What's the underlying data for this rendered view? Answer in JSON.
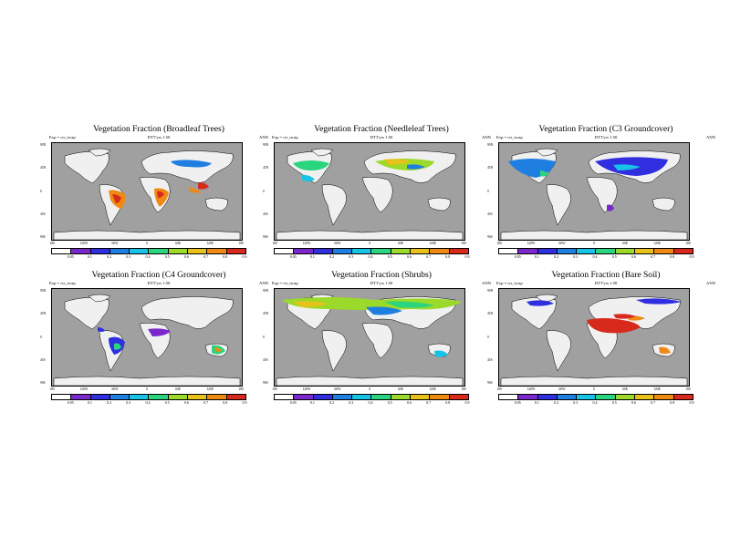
{
  "colors": {
    "ocean": "#a0a0a0",
    "land": "#f0f0f0",
    "colorbar": [
      "#ffffff",
      "#7a28cc",
      "#2f2fe0",
      "#1f7fe0",
      "#17c3e6",
      "#2bd47f",
      "#9bd92a",
      "#e6c21a",
      "#ee8a14",
      "#d82a1c"
    ]
  },
  "common": {
    "left_label": "Exp = ctr_trcap",
    "mid_label": "DTT'yrs 1:50",
    "right_label": "ANN",
    "y_ticks": [
      "90N",
      "45N",
      "0",
      "45S",
      "90S"
    ],
    "x_ticks": [
      "180",
      "120W",
      "60W",
      "0",
      "60E",
      "120E",
      "180"
    ],
    "colorbar_ticks": [
      "0.05",
      "0.1",
      "0.2",
      "0.3",
      "0.4",
      "0.5",
      "0.6",
      "0.7",
      "0.8",
      "0.9"
    ]
  },
  "panels": [
    {
      "title": "Vegetation Fraction (Broadleaf Trees)"
    },
    {
      "title": "Vegetation Fraction (Needleleaf Trees)"
    },
    {
      "title": "Vegetation Fraction (C3 Groundcover)"
    },
    {
      "title": "Vegetation Fraction (C4 Groundcover)"
    },
    {
      "title": "Vegetation Fraction (Shrubs)"
    },
    {
      "title": "Vegetation Fraction (Bare Soil)"
    }
  ]
}
